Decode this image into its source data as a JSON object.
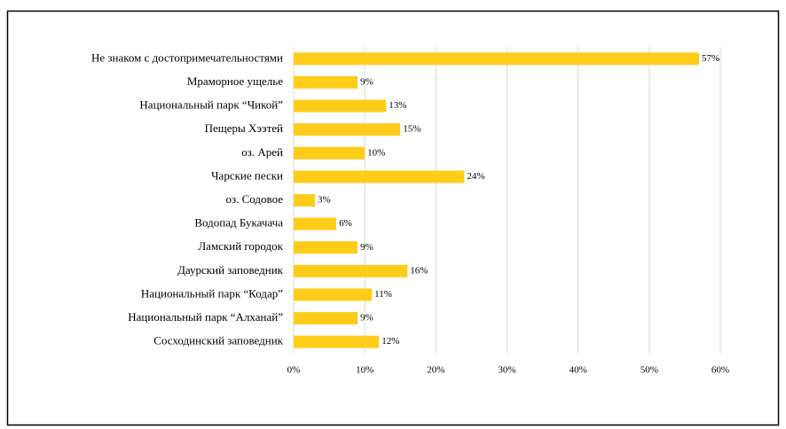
{
  "chart_data": {
    "type": "bar",
    "orientation": "horizontal",
    "categories": [
      "Не знаком с достопримечательностями",
      "Мраморное ущелье",
      "Национальный парк “Чикой”",
      "Пещеры Хээтей",
      "оз. Арей",
      "Чарские пески",
      "оз. Содовое",
      "Водопад Букачача",
      "Ламский городок",
      "Даурский заповедник",
      "Национальный парк “Кодар”",
      "Национальный парк “Алханай”",
      "Сосходинский заповедник"
    ],
    "values": [
      57,
      9,
      13,
      15,
      10,
      24,
      3,
      6,
      9,
      16,
      11,
      9,
      12
    ],
    "value_labels": [
      "57%",
      "9%",
      "13%",
      "15%",
      "10%",
      "24%",
      "3%",
      "6%",
      "9%",
      "16%",
      "11%",
      "9%",
      "12%"
    ],
    "color": "#ffcc1a",
    "xlim": [
      0,
      60
    ],
    "xticks": [
      {
        "value": 0,
        "label": "0%"
      },
      {
        "value": 10,
        "label": "10%"
      },
      {
        "value": 20,
        "label": "20%"
      },
      {
        "value": 30,
        "label": "30%"
      },
      {
        "value": 40,
        "label": "40%"
      },
      {
        "value": 50,
        "label": "50%"
      },
      {
        "value": 60,
        "label": "60%"
      }
    ],
    "grid": true
  }
}
